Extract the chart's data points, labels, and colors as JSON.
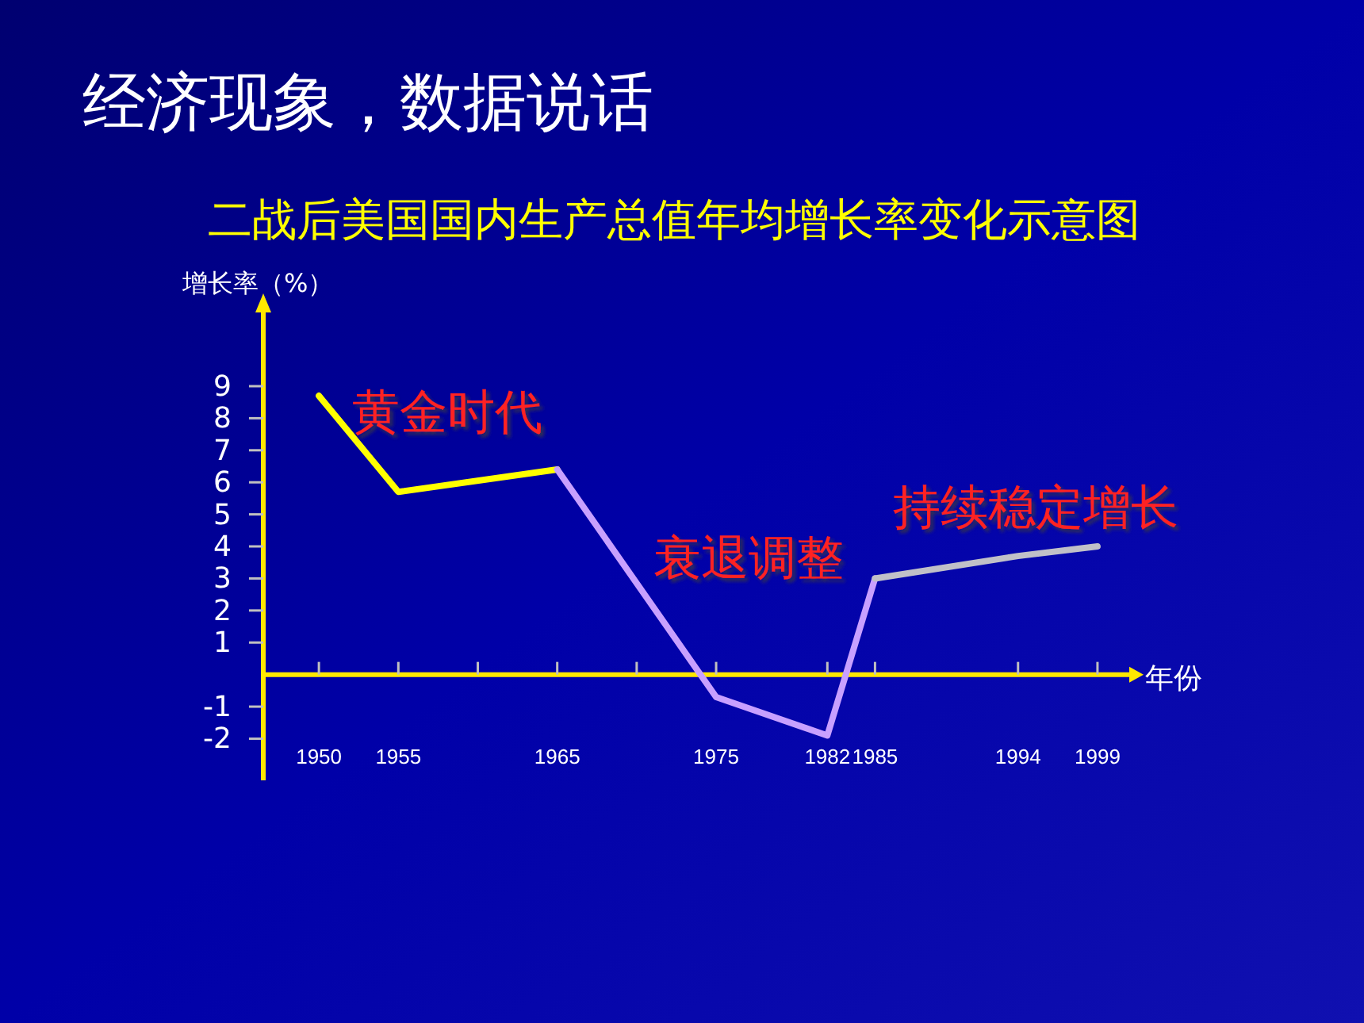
{
  "chart_data": {
    "type": "line",
    "title": "经济现象，数据说话",
    "subtitle": "二战后美国国内生产总值年均增长率变化示意图",
    "ylabel": "增长率（%）",
    "xlabel": "年份",
    "xlim": [
      1946.5,
      2001
    ],
    "xticks": [
      1950,
      1955,
      {
        "value": 1960,
        "label": null
      },
      1965,
      {
        "value": 1970,
        "label": null
      },
      1975,
      1982,
      1985,
      1994,
      1999
    ],
    "ylim": [
      -3.3,
      11.4
    ],
    "yticks": [
      -2,
      -1,
      1,
      2,
      3,
      4,
      5,
      6,
      7,
      8,
      9
    ],
    "ref_lines": [
      {
        "axis": "y",
        "value": 0,
        "color": "#ffe800"
      }
    ],
    "grid": false,
    "marker": "none",
    "line_style": "solid",
    "series": [
      {
        "color": "#ffff00",
        "x": [
          1950,
          1955,
          1965
        ],
        "values": [
          8.7,
          5.7,
          6.4
        ]
      },
      {
        "color": "#c8a0ff",
        "x": [
          1965,
          1975,
          1982,
          1985
        ],
        "values": [
          6.4,
          -0.7,
          -1.9,
          3.0
        ]
      },
      {
        "color": "#c0c0c8",
        "x": [
          1985,
          1994,
          1999
        ],
        "values": [
          3.0,
          3.7,
          4.0
        ]
      }
    ],
    "annotations": [
      "黄金时代",
      "衰退调整",
      "持续稳定增长"
    ]
  }
}
